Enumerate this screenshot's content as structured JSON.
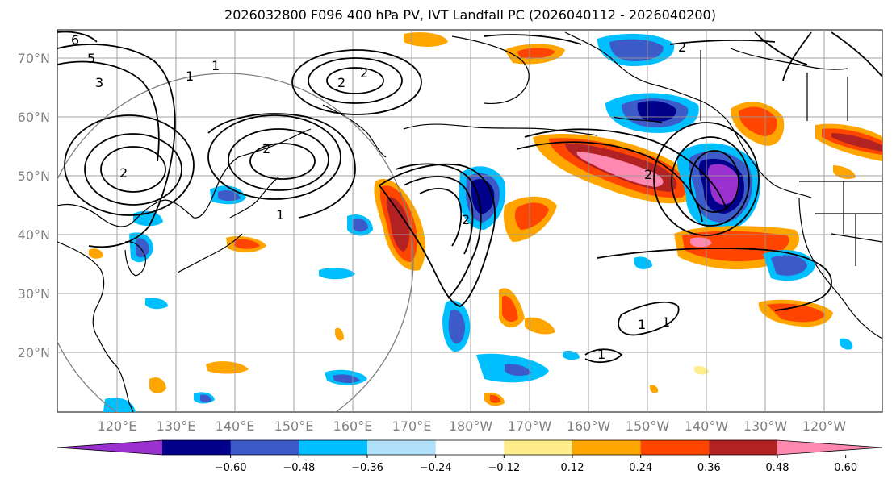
{
  "title": "2026032800 F096 400 hPa PV, IVT Landfall PC (2026040112 - 2026040200)",
  "lat_labels": [
    "70°N",
    "60°N",
    "50°N",
    "40°N",
    "30°N",
    "20°N"
  ],
  "lon_labels": [
    "120°E",
    "130°E",
    "140°E",
    "150°E",
    "160°E",
    "170°E",
    "180°W",
    "170°W",
    "160°W",
    "150°W",
    "140°W",
    "130°W",
    "120°W"
  ],
  "colorbar": {
    "colors": [
      "#9b30d0",
      "#00008b",
      "#3c5ac8",
      "#00bfff",
      "#b0e0fa",
      "#ffffff",
      "#ffec8b",
      "#ffa500",
      "#ff4500",
      "#b22222",
      "#ff88b0"
    ],
    "tick_labels": [
      "−0.60",
      "−0.48",
      "−0.36",
      "−0.24",
      "−0.12",
      "0.12",
      "0.24",
      "0.36",
      "0.48",
      "0.60"
    ]
  },
  "contour_labels": [
    "6",
    "5",
    "3",
    "2",
    "1",
    "2",
    "2",
    "1",
    "1",
    "2",
    "2",
    "2",
    "1",
    "1",
    "1",
    "2"
  ],
  "colors": {
    "gridline": "#999999",
    "coast": "#000000",
    "circle": "#808080"
  }
}
